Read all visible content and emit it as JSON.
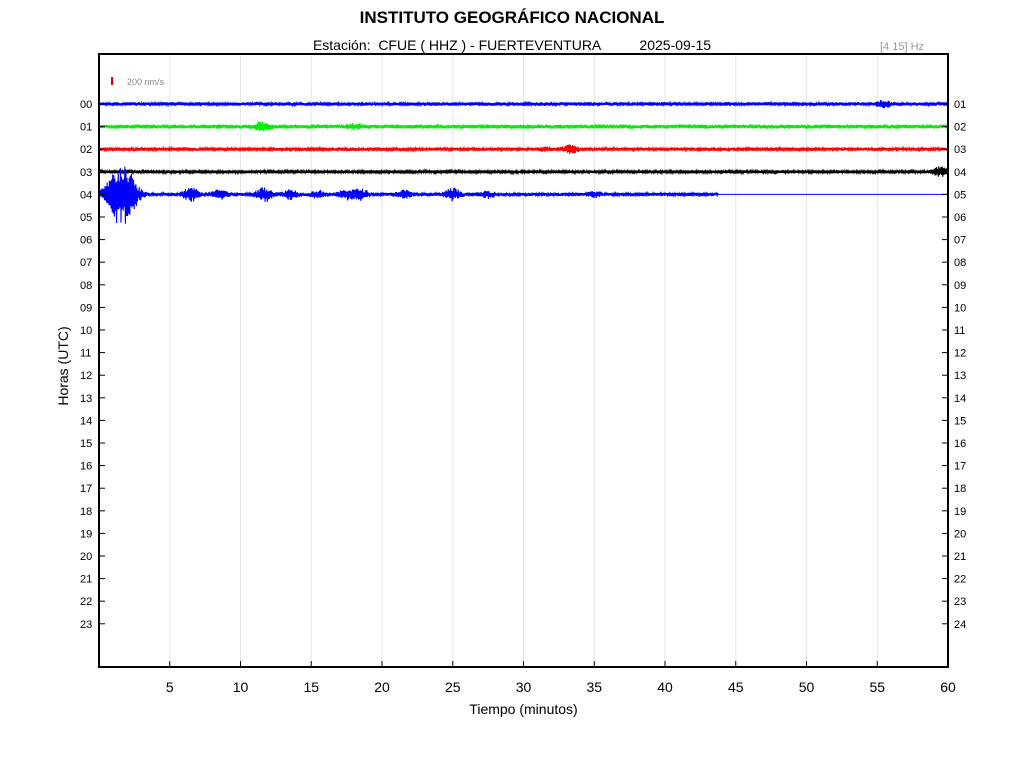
{
  "header": {
    "title": "INSTITUTO GEOGRÁFICO NACIONAL",
    "station_label": "Estación:",
    "station": "CFUE ( HHZ ) - FUERTEVENTURA",
    "date": "2025-09-15",
    "filter": "[4 15] Hz"
  },
  "chart_data": {
    "type": "line",
    "subtype": "helicorder",
    "title": "INSTITUTO GEOGRÁFICO NACIONAL",
    "xlabel": "Tiempo (minutos)",
    "ylabel": "Horas (UTC)",
    "xlim": [
      0,
      60
    ],
    "x_ticks": [
      "5",
      "10",
      "15",
      "20",
      "25",
      "30",
      "35",
      "40",
      "45",
      "50",
      "55",
      "60"
    ],
    "y_ticks_left": [
      "00",
      "01",
      "02",
      "03",
      "04",
      "05",
      "06",
      "07",
      "08",
      "09",
      "10",
      "11",
      "12",
      "13",
      "14",
      "15",
      "16",
      "17",
      "18",
      "19",
      "20",
      "21",
      "22",
      "23"
    ],
    "y_ticks_right": [
      "01",
      "02",
      "03",
      "04",
      "05",
      "06",
      "07",
      "08",
      "09",
      "10",
      "11",
      "12",
      "13",
      "14",
      "15",
      "16",
      "17",
      "18",
      "19",
      "20",
      "21",
      "22",
      "23",
      "24"
    ],
    "grid": "vertical",
    "scale_bar": {
      "label": "200 nm/s",
      "color": "#dd0000"
    },
    "colors": [
      "#0000ff",
      "#00ee00",
      "#ff0000",
      "#000000"
    ],
    "traces": [
      {
        "hour": "00",
        "color": "#0000ff",
        "end_minute": 60,
        "base_amplitude": 0.45,
        "bursts": [
          {
            "minute": 55.5,
            "amp": 0.7
          }
        ]
      },
      {
        "hour": "01",
        "color": "#00ee00",
        "end_minute": 60,
        "base_amplitude": 0.5,
        "bursts": [
          {
            "minute": 11.5,
            "amp": 0.85
          },
          {
            "minute": 18,
            "amp": 0.5
          }
        ]
      },
      {
        "hour": "02",
        "color": "#ff0000",
        "end_minute": 60,
        "base_amplitude": 0.4,
        "bursts": [
          {
            "minute": 33.3,
            "amp": 0.9
          },
          {
            "minute": 31.5,
            "amp": 0.35
          }
        ]
      },
      {
        "hour": "03",
        "color": "#000000",
        "end_minute": 60,
        "base_amplitude": 0.35,
        "bursts": [
          {
            "minute": 59.5,
            "amp": 1.2
          }
        ]
      },
      {
        "hour": "04",
        "color": "#0000ff",
        "end_minute": 43.8,
        "base_amplitude": 0.4,
        "bursts": [
          {
            "minute": 1.2,
            "amp": 3.0
          },
          {
            "minute": 1.8,
            "amp": 5.5
          },
          {
            "minute": 6.5,
            "amp": 1.6
          },
          {
            "minute": 8.5,
            "amp": 1.2
          },
          {
            "minute": 11.7,
            "amp": 1.8
          },
          {
            "minute": 13.5,
            "amp": 1.1
          },
          {
            "minute": 15.5,
            "amp": 0.8
          },
          {
            "minute": 17.5,
            "amp": 1.1
          },
          {
            "minute": 18.5,
            "amp": 1.2
          },
          {
            "minute": 21.5,
            "amp": 0.9
          },
          {
            "minute": 25.0,
            "amp": 1.4
          },
          {
            "minute": 27.5,
            "amp": 0.7
          },
          {
            "minute": 35.0,
            "amp": 0.6
          }
        ]
      }
    ]
  }
}
